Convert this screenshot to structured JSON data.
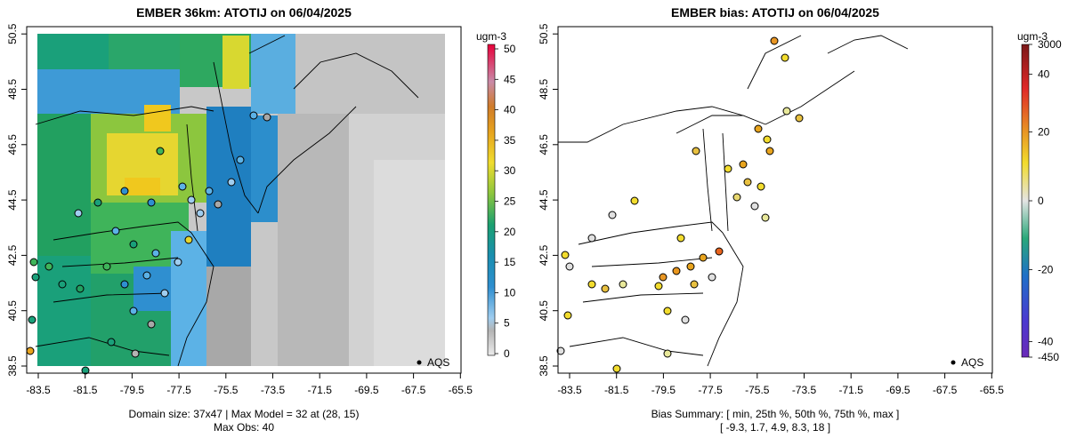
{
  "left": {
    "title": "EMBER 36km: ATOTIJ on 06/04/2025",
    "x_ticks": [
      "-83.5",
      "-81.5",
      "-79.5",
      "-77.5",
      "-75.5",
      "-73.5",
      "-71.5",
      "-69.5",
      "-67.5",
      "-65.5"
    ],
    "y_ticks": [
      "38.5",
      "40.5",
      "42.5",
      "44.5",
      "46.5",
      "48.5",
      "50.5"
    ],
    "legend_marker": "AQS",
    "footer_line1": "Domain size: 37x47 | Max Model = 32 at (28, 15)",
    "footer_line2": "Max Obs: 40",
    "colorbar": {
      "unit": "ugm-3",
      "labels": [
        "0",
        "5",
        "10",
        "15",
        "20",
        "25",
        "30",
        "35",
        "40",
        "45",
        "50"
      ],
      "colors": [
        "#e6e6e6",
        "#a8a8a8",
        "#6fbbee",
        "#1f80c8",
        "#129b8a",
        "#3fb45a",
        "#a8cd3c",
        "#f2dc2e",
        "#e8a41e",
        "#d47a26",
        "#c79ab0",
        "#e02060"
      ]
    }
  },
  "right": {
    "title": "EMBER bias: ATOTIJ on 06/04/2025",
    "x_ticks": [
      "-83.5",
      "-81.5",
      "-79.5",
      "-77.5",
      "-75.5",
      "-73.5",
      "-71.5",
      "-69.5",
      "-67.5",
      "-65.5"
    ],
    "y_ticks": [
      "38.5",
      "40.5",
      "42.5",
      "44.5",
      "46.5",
      "48.5",
      "50.5"
    ],
    "legend_marker": "AQS",
    "footer_line1": "Bias Summary: [ min, 25th %, 50th %, 75th %, max ]",
    "footer_line2": "[ -9.3,   1.7,   4.9,   8.3,   18 ]",
    "colorbar": {
      "unit": "ugm-3",
      "labels": [
        "3000",
        "40",
        "20",
        "0",
        "-20",
        "-40",
        "-450"
      ],
      "colors": [
        "#8a1a1a",
        "#e02828",
        "#e88a24",
        "#f2dc2e",
        "#e0e0e0",
        "#2aa87a",
        "#1f6fc8",
        "#3b3bd0",
        "#7a2ad0"
      ]
    }
  }
}
